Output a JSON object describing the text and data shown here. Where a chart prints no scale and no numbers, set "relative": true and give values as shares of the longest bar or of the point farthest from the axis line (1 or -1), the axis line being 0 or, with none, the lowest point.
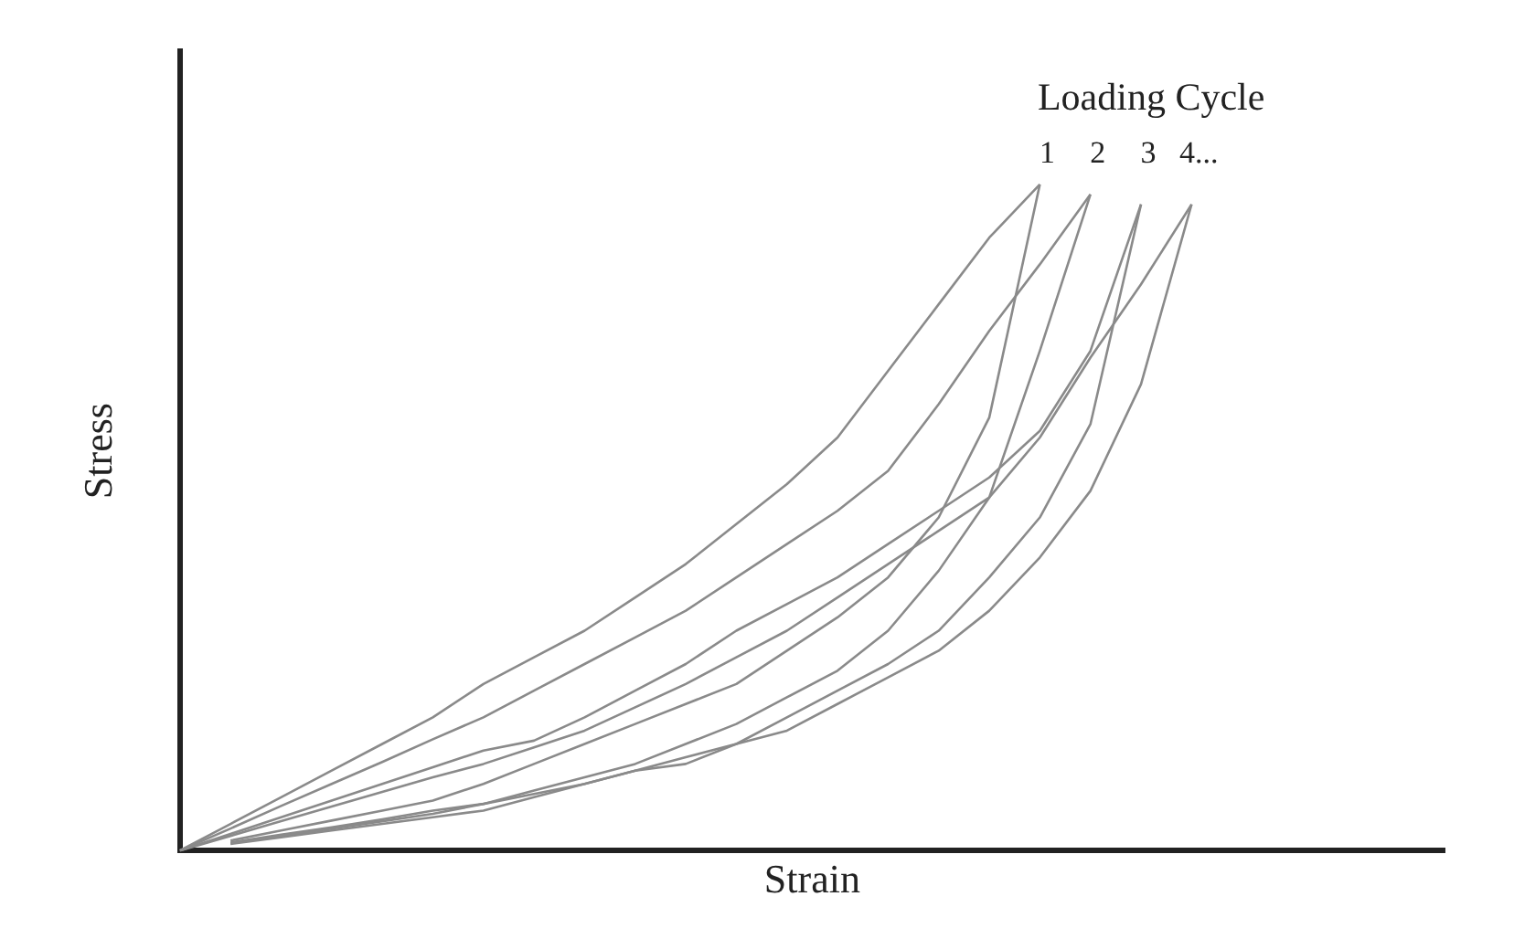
{
  "chart_data": {
    "type": "line",
    "relative": true,
    "xlabel": "Strain",
    "ylabel": "Stress",
    "legend_title": "Loading Cycle",
    "legend": false,
    "grid": false,
    "marker": "none",
    "line_style": "solid",
    "categories": [
      null,
      null,
      null,
      null,
      null,
      null,
      null,
      null,
      null,
      null,
      null,
      null,
      null,
      null,
      null,
      null,
      null,
      null,
      null,
      null,
      null
    ],
    "series": [
      {
        "name": "1",
        "color": "#8a8a8a",
        "values": [
          0,
          0.04,
          0.08,
          0.12,
          0.16,
          0.2,
          0.25,
          0.29,
          0.33,
          0.38,
          0.43,
          0.49,
          0.55,
          0.62,
          0.72,
          0.82,
          0.92,
          1.0,
          null,
          null,
          null
        ]
      },
      {
        "color": "#8a8a8a",
        "values": [
          null,
          0.015,
          0.03,
          0.045,
          0.06,
          0.075,
          0.1,
          0.13,
          0.16,
          0.19,
          0.22,
          0.25,
          0.3,
          0.35,
          0.41,
          0.5,
          0.65,
          1.0,
          null,
          null,
          null
        ]
      },
      {
        "name": "2",
        "color": "#8a8a8a",
        "values": [
          0,
          0.033,
          0.067,
          0.1,
          0.133,
          0.167,
          0.2,
          0.24,
          0.28,
          0.32,
          0.36,
          0.41,
          0.46,
          0.51,
          0.57,
          0.67,
          0.78,
          0.88,
          0.985,
          null,
          null
        ]
      },
      {
        "color": "#8a8a8a",
        "values": [
          null,
          0.011,
          0.022,
          0.033,
          0.044,
          0.055,
          0.07,
          0.09,
          0.11,
          0.13,
          0.16,
          0.19,
          0.23,
          0.27,
          0.33,
          0.42,
          0.53,
          0.75,
          0.985,
          null,
          null
        ]
      },
      {
        "name": "3",
        "color": "#8a8a8a",
        "values": [
          0,
          0.025,
          0.05,
          0.075,
          0.1,
          0.125,
          0.15,
          0.165,
          0.2,
          0.24,
          0.28,
          0.33,
          0.37,
          0.41,
          0.46,
          0.51,
          0.56,
          0.63,
          0.75,
          0.97,
          null
        ]
      },
      {
        "color": "#8a8a8a",
        "values": [
          null,
          0.01,
          0.02,
          0.03,
          0.04,
          0.05,
          0.06,
          0.08,
          0.1,
          0.12,
          0.13,
          0.16,
          0.2,
          0.24,
          0.28,
          0.33,
          0.41,
          0.5,
          0.64,
          0.97,
          null
        ]
      },
      {
        "name": "4...",
        "color": "#8a8a8a",
        "values": [
          0,
          0.022,
          0.044,
          0.066,
          0.088,
          0.11,
          0.13,
          0.155,
          0.18,
          0.215,
          0.25,
          0.29,
          0.33,
          0.38,
          0.43,
          0.48,
          0.53,
          0.62,
          0.74,
          0.85,
          0.97
        ]
      },
      {
        "color": "#8a8a8a",
        "values": [
          null,
          0.012,
          0.024,
          0.035,
          0.047,
          0.06,
          0.07,
          0.085,
          0.1,
          0.12,
          0.14,
          0.16,
          0.18,
          0.22,
          0.26,
          0.3,
          0.36,
          0.44,
          0.54,
          0.7,
          0.97
        ]
      }
    ]
  }
}
